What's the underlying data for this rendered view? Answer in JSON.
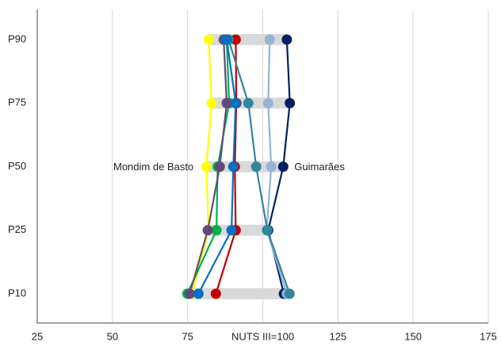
{
  "chart_data": {
    "type": "dot-line",
    "categories": [
      "P10",
      "P25",
      "P50",
      "P75",
      "P90"
    ],
    "xlim": [
      25,
      175
    ],
    "xticks": [
      25,
      50,
      75,
      {
        "value": 100,
        "label": "NUTS III=100"
      },
      125,
      150,
      175
    ],
    "grid": true,
    "range_color": "#d9d9d9",
    "annotations": [
      {
        "text": "Mondim de Basto",
        "series": 0,
        "category": 2,
        "side": "left"
      },
      {
        "text": "Guimarães",
        "series": 1,
        "category": 2,
        "side": "right"
      }
    ],
    "series": [
      {
        "color": "#ffff00",
        "values": [
          76.5,
          82,
          81.2,
          83,
          82
        ]
      },
      {
        "color": "#002060",
        "values": [
          107,
          101.8,
          106.8,
          109,
          108
        ]
      },
      {
        "color": "#95b3d7",
        "values": [
          108,
          101.3,
          102.8,
          101.8,
          102.3
        ]
      },
      {
        "color": "#c00000",
        "values": [
          84.4,
          91,
          90.7,
          91.2,
          91
        ]
      },
      {
        "color": "#00b050",
        "values": [
          74.9,
          84.6,
          85,
          88.8,
          88
        ]
      },
      {
        "color": "#604a7b",
        "values": [
          75.7,
          81.7,
          85.7,
          88,
          87
        ]
      },
      {
        "color": "#31859c",
        "values": [
          108.9,
          101.5,
          97.8,
          95.2,
          88.6
        ]
      },
      {
        "color": "#0070c0",
        "values": [
          78.6,
          89.6,
          90.2,
          91,
          88
        ]
      }
    ]
  }
}
